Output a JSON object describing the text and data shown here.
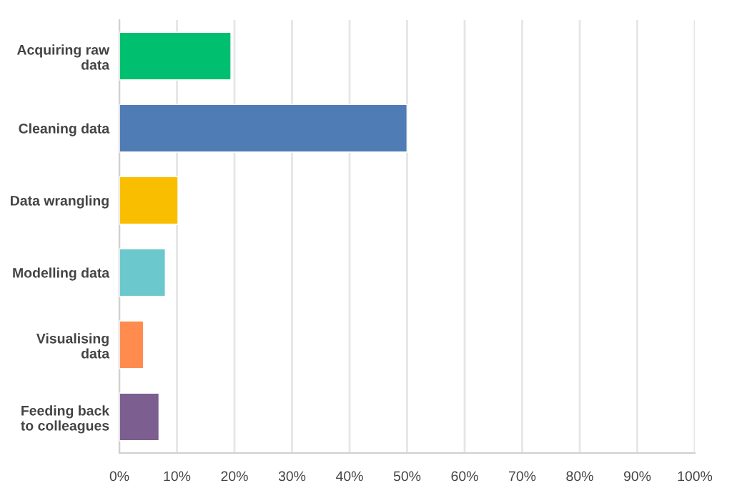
{
  "chart_data": {
    "type": "bar",
    "orientation": "horizontal",
    "categories": [
      "Acquiring raw\ndata",
      "Cleaning data",
      "Data wrangling",
      "Modelling data",
      "Visualising\ndata",
      "Feeding back\nto colleagues"
    ],
    "values": [
      19.4,
      50,
      10.2,
      8,
      4.2,
      6.9
    ],
    "colors": [
      "#00bf6f",
      "#507cb6",
      "#f9be00",
      "#6bc8cd",
      "#ff8b4f",
      "#7d5e90"
    ],
    "xlim": [
      0,
      100
    ],
    "xticks": [
      {
        "value": 0,
        "label": "0%"
      },
      {
        "value": 10,
        "label": "10%"
      },
      {
        "value": 20,
        "label": "20%"
      },
      {
        "value": 30,
        "label": "30%"
      },
      {
        "value": 40,
        "label": "40%"
      },
      {
        "value": 50,
        "label": "50%"
      },
      {
        "value": 60,
        "label": "60%"
      },
      {
        "value": 70,
        "label": "70%"
      },
      {
        "value": 80,
        "label": "80%"
      },
      {
        "value": 90,
        "label": "90%"
      },
      {
        "value": 100,
        "label": "100%"
      }
    ],
    "grid": "x",
    "legend": false
  }
}
